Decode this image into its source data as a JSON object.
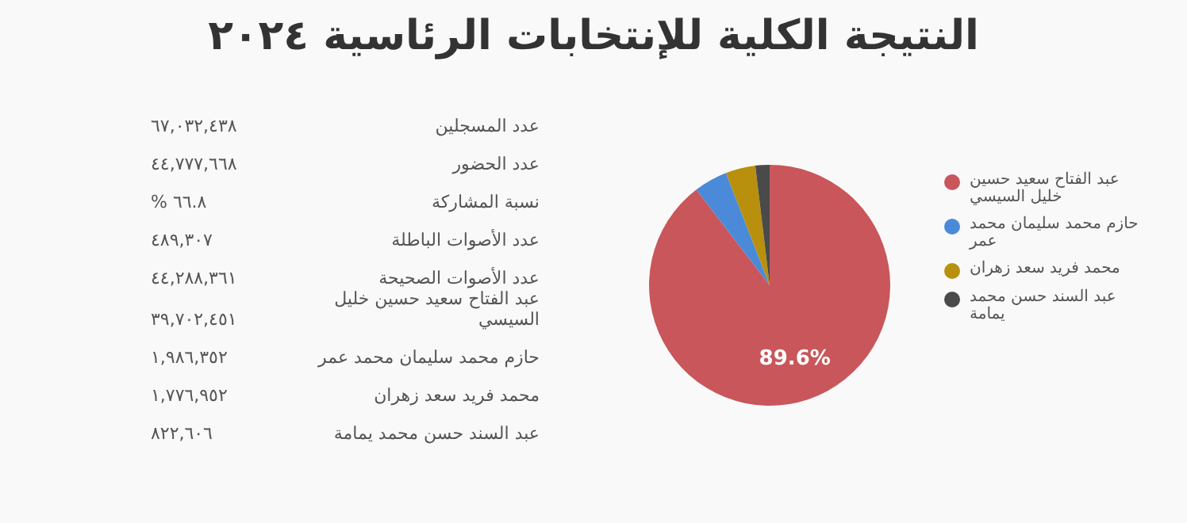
{
  "chart_data": [
    {
      "type": "other",
      "annotations": [
        "عدد المسجلين",
        "٦٧,٠٣٢,٤٣٨",
        "عدد الحضور",
        "٤٤,٧٧٧,٦٦٨",
        "نسبة المشاركة",
        "% ٦٦.٨",
        "عدد الأصوات الباطلة",
        "٤٨٩,٣٠٧",
        "عدد الأصوات الصحيحة",
        "٤٤,٢٨٨,٣٦١",
        "عبد الفتاح سعيد حسين خليل السيسي",
        "٣٩,٧٠٢,٤٥١",
        "حازم محمد سليمان محمد عمر",
        "١,٩٨٦,٣٥٢",
        "محمد فريد سعد زهران",
        "١,٧٧٦,٩٥٢",
        "عبد السند حسن محمد يمامة",
        "٨٢٢,٦٠٦"
      ]
    },
    {
      "type": "pie",
      "title": "النتيجة الكلية للإنتخابات الرئاسية ٢٠٢٤",
      "categories": [
        "عبد الفتاح سعيد حسين خليل السيسي",
        "حازم محمد سليمان محمد عمر",
        "محمد فريد سعد زهران",
        "عبد السند حسن محمد يمامة"
      ],
      "values": [
        89.6,
        4.5,
        4.0,
        1.9
      ],
      "colors": [
        "#c9565a",
        "#4a8ad8",
        "#b8900e",
        "#4a4a4a"
      ],
      "value_labels": [
        "89.6%",
        null,
        null,
        null
      ],
      "legend": "right"
    }
  ]
}
